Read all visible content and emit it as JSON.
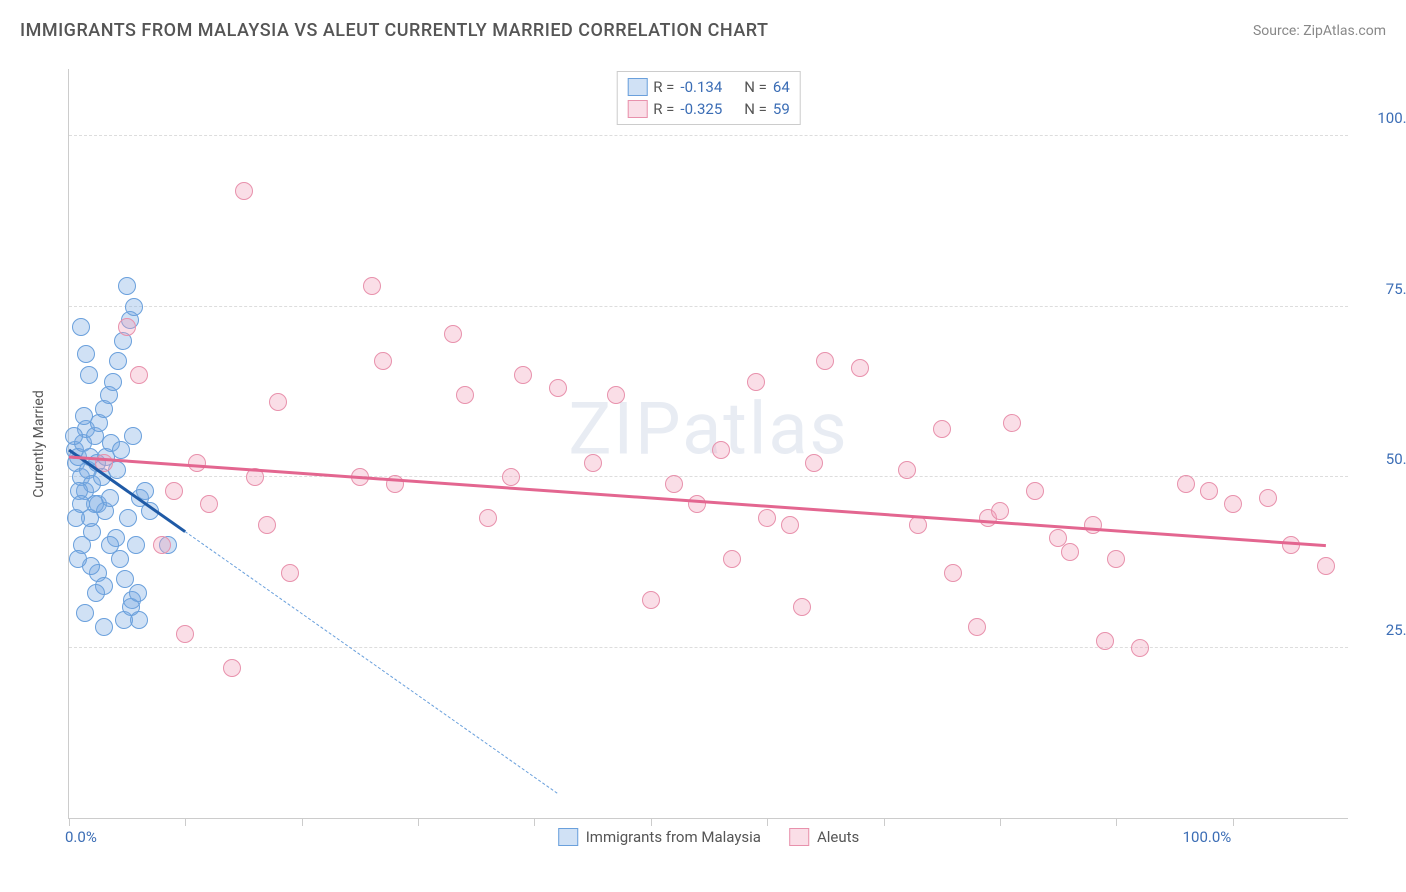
{
  "title": "IMMIGRANTS FROM MALAYSIA VS ALEUT CURRENTLY MARRIED CORRELATION CHART",
  "source": "Source: ZipAtlas.com",
  "watermark": "ZIPatlas",
  "chart": {
    "type": "scatter",
    "ylabel": "Currently Married",
    "xlim": [
      0,
      110
    ],
    "ylim": [
      0,
      110
    ],
    "ytick_positions": [
      25,
      50,
      75,
      100
    ],
    "ytick_labels": [
      "25.0%",
      "50.0%",
      "75.0%",
      "100.0%"
    ],
    "xtick_positions": [
      0,
      10,
      20,
      30,
      40,
      50,
      60,
      70,
      80,
      90,
      100
    ],
    "xtick_labels": {
      "0": "0.0%",
      "100": "100.0%"
    },
    "background_color": "#ffffff",
    "grid_color": "#dddddd",
    "point_radius": 9,
    "series": [
      {
        "name": "Immigrants from Malaysia",
        "fill_color": "rgba(120,170,225,0.35)",
        "stroke_color": "#6aa0dc",
        "regression": {
          "x1": 0,
          "y1": 54,
          "x2": 10,
          "y2": 42,
          "color": "#1f5aa6",
          "width": 3,
          "dash_extend_to_x": 42
        },
        "stats": {
          "R": "-0.134",
          "N": "64"
        },
        "points": [
          [
            0.5,
            54
          ],
          [
            0.6,
            52
          ],
          [
            0.8,
            53
          ],
          [
            1.0,
            50
          ],
          [
            1.2,
            55
          ],
          [
            1.4,
            48
          ],
          [
            1.5,
            57
          ],
          [
            1.6,
            51
          ],
          [
            1.8,
            53
          ],
          [
            2.0,
            49
          ],
          [
            2.2,
            56
          ],
          [
            2.4,
            52
          ],
          [
            2.5,
            46
          ],
          [
            2.6,
            58
          ],
          [
            2.8,
            50
          ],
          [
            3.0,
            60
          ],
          [
            3.1,
            45
          ],
          [
            3.2,
            53
          ],
          [
            3.4,
            62
          ],
          [
            3.5,
            47
          ],
          [
            3.6,
            55
          ],
          [
            3.8,
            64
          ],
          [
            4.0,
            41
          ],
          [
            4.1,
            51
          ],
          [
            4.2,
            67
          ],
          [
            4.4,
            38
          ],
          [
            4.5,
            54
          ],
          [
            4.6,
            70
          ],
          [
            4.8,
            35
          ],
          [
            5.0,
            78
          ],
          [
            5.1,
            44
          ],
          [
            5.2,
            73
          ],
          [
            5.4,
            32
          ],
          [
            5.5,
            56
          ],
          [
            5.6,
            75
          ],
          [
            5.8,
            40
          ],
          [
            6.0,
            29
          ],
          [
            6.1,
            47
          ],
          [
            1.0,
            72
          ],
          [
            1.5,
            68
          ],
          [
            2.0,
            42
          ],
          [
            2.5,
            36
          ],
          [
            3.0,
            34
          ],
          [
            3.5,
            40
          ],
          [
            1.8,
            44
          ],
          [
            2.2,
            46
          ],
          [
            6.5,
            48
          ],
          [
            7.0,
            45
          ],
          [
            8.5,
            40
          ],
          [
            0.4,
            56
          ],
          [
            0.9,
            48
          ],
          [
            1.3,
            59
          ],
          [
            1.7,
            65
          ],
          [
            0.6,
            44
          ],
          [
            1.1,
            40
          ],
          [
            1.9,
            37
          ],
          [
            4.7,
            29
          ],
          [
            5.3,
            31
          ],
          [
            5.9,
            33
          ],
          [
            3.0,
            28
          ],
          [
            2.3,
            33
          ],
          [
            1.4,
            30
          ],
          [
            0.8,
            38
          ],
          [
            1.0,
            46
          ]
        ]
      },
      {
        "name": "Aleuts",
        "fill_color": "rgba(240,160,185,0.35)",
        "stroke_color": "#e891ac",
        "regression": {
          "x1": 0,
          "y1": 53,
          "x2": 108,
          "y2": 40,
          "color": "#e36690",
          "width": 3
        },
        "stats": {
          "R": "-0.325",
          "N": "59"
        },
        "points": [
          [
            3,
            52
          ],
          [
            5,
            72
          ],
          [
            6,
            65
          ],
          [
            8,
            40
          ],
          [
            9,
            48
          ],
          [
            10,
            27
          ],
          [
            11,
            52
          ],
          [
            12,
            46
          ],
          [
            14,
            22
          ],
          [
            15,
            92
          ],
          [
            16,
            50
          ],
          [
            17,
            43
          ],
          [
            18,
            61
          ],
          [
            19,
            36
          ],
          [
            25,
            50
          ],
          [
            26,
            78
          ],
          [
            27,
            67
          ],
          [
            28,
            49
          ],
          [
            33,
            71
          ],
          [
            34,
            62
          ],
          [
            36,
            44
          ],
          [
            38,
            50
          ],
          [
            39,
            65
          ],
          [
            42,
            63
          ],
          [
            45,
            52
          ],
          [
            47,
            62
          ],
          [
            50,
            32
          ],
          [
            52,
            49
          ],
          [
            54,
            46
          ],
          [
            56,
            54
          ],
          [
            57,
            38
          ],
          [
            59,
            64
          ],
          [
            60,
            44
          ],
          [
            62,
            43
          ],
          [
            63,
            31
          ],
          [
            64,
            52
          ],
          [
            65,
            67
          ],
          [
            68,
            66
          ],
          [
            72,
            51
          ],
          [
            73,
            43
          ],
          [
            75,
            57
          ],
          [
            76,
            36
          ],
          [
            78,
            28
          ],
          [
            79,
            44
          ],
          [
            80,
            45
          ],
          [
            81,
            58
          ],
          [
            83,
            48
          ],
          [
            85,
            41
          ],
          [
            86,
            39
          ],
          [
            88,
            43
          ],
          [
            89,
            26
          ],
          [
            90,
            38
          ],
          [
            92,
            25
          ],
          [
            96,
            49
          ],
          [
            98,
            48
          ],
          [
            100,
            46
          ],
          [
            103,
            47
          ],
          [
            105,
            40
          ],
          [
            108,
            37
          ]
        ]
      }
    ],
    "legend_top": [
      {
        "swatch_fill": "rgba(120,170,225,0.35)",
        "swatch_stroke": "#6aa0dc",
        "R": "-0.134",
        "N": "64"
      },
      {
        "swatch_fill": "rgba(240,160,185,0.35)",
        "swatch_stroke": "#e891ac",
        "R": "-0.325",
        "N": "59"
      }
    ],
    "legend_bottom": [
      {
        "swatch_fill": "rgba(120,170,225,0.35)",
        "swatch_stroke": "#6aa0dc",
        "label": "Immigrants from Malaysia"
      },
      {
        "swatch_fill": "rgba(240,160,185,0.35)",
        "swatch_stroke": "#e891ac",
        "label": "Aleuts"
      }
    ]
  }
}
